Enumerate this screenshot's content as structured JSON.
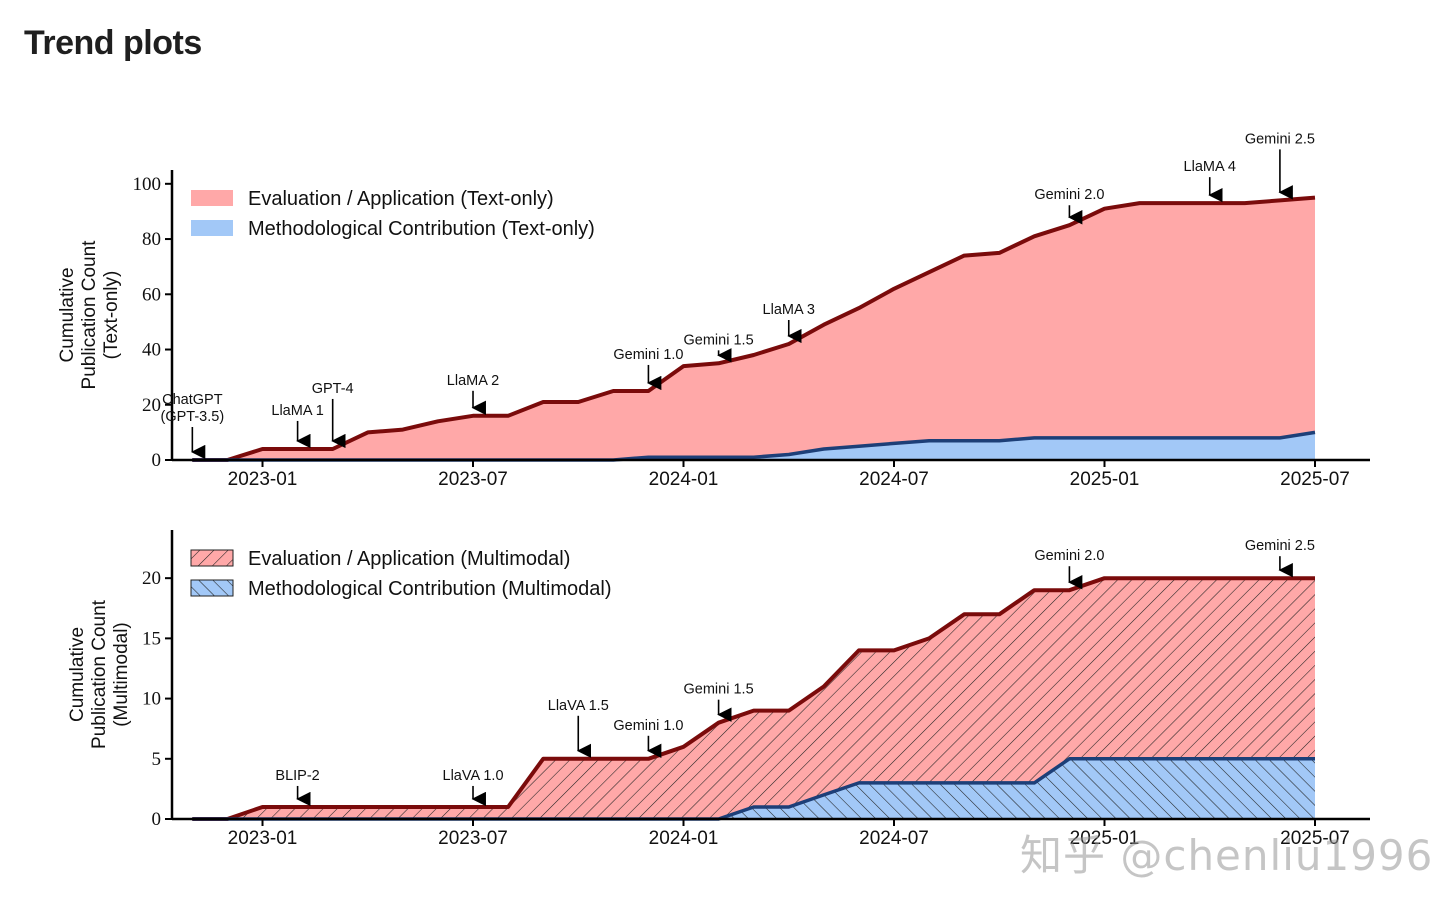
{
  "page": {
    "title": "Trend plots",
    "watermark": "知乎 @chenliu1996"
  },
  "colors": {
    "eval_fill": "#ffa8a8",
    "eval_line": "#7a0b0b",
    "method_fill": "#a2c8f7",
    "method_line": "#1d3f78"
  },
  "chart_data": [
    {
      "type": "area",
      "stacked": true,
      "ylabel": [
        "Cumulative",
        "Publication Count",
        "(Text-only)"
      ],
      "ylim": [
        0,
        105
      ],
      "yticks": [
        0,
        20,
        40,
        60,
        80,
        100
      ],
      "xlim": [
        "2022-10",
        "2025-07"
      ],
      "xticks": [
        "2023-01",
        "2023-07",
        "2024-01",
        "2024-07",
        "2025-01",
        "2025-07"
      ],
      "legend": "top-left",
      "hatched": false,
      "x": [
        "2022-11",
        "2022-12",
        "2023-01",
        "2023-02",
        "2023-03",
        "2023-04",
        "2023-05",
        "2023-06",
        "2023-07",
        "2023-08",
        "2023-09",
        "2023-10",
        "2023-11",
        "2023-12",
        "2024-01",
        "2024-02",
        "2024-03",
        "2024-04",
        "2024-05",
        "2024-06",
        "2024-07",
        "2024-08",
        "2024-09",
        "2024-10",
        "2024-11",
        "2024-12",
        "2025-01",
        "2025-02",
        "2025-03",
        "2025-04",
        "2025-05",
        "2025-06",
        "2025-07"
      ],
      "series": [
        {
          "name": "Methodological Contribution (Text-only)",
          "role": "method",
          "values": [
            0,
            0,
            0,
            0,
            0,
            0,
            0,
            0,
            0,
            0,
            0,
            0,
            0,
            1,
            1,
            1,
            1,
            2,
            4,
            5,
            6,
            7,
            7,
            7,
            8,
            8,
            8,
            8,
            8,
            8,
            8,
            8,
            10
          ]
        },
        {
          "name": "Evaluation / Application (Text-only)",
          "role": "eval",
          "values": [
            0,
            0,
            4,
            4,
            4,
            10,
            11,
            14,
            16,
            16,
            21,
            21,
            25,
            25,
            34,
            35,
            38,
            42,
            49,
            55,
            62,
            68,
            74,
            75,
            81,
            85,
            91,
            93,
            93,
            93,
            93,
            94,
            95
          ]
        }
      ],
      "annotations": [
        {
          "label": [
            "ChatGPT",
            "(GPT-3.5)"
          ],
          "x": "2022-11"
        },
        {
          "label": [
            "LlaMA 1"
          ],
          "x": "2023-02"
        },
        {
          "label": [
            "GPT-4"
          ],
          "x": "2023-03"
        },
        {
          "label": [
            "LlaMA 2"
          ],
          "x": "2023-07"
        },
        {
          "label": [
            "Gemini 1.0"
          ],
          "x": "2023-12"
        },
        {
          "label": [
            "Gemini 1.5"
          ],
          "x": "2024-02"
        },
        {
          "label": [
            "LlaMA 3"
          ],
          "x": "2024-04"
        },
        {
          "label": [
            "Gemini 2.0"
          ],
          "x": "2024-12"
        },
        {
          "label": [
            "LlaMA 4"
          ],
          "x": "2025-04"
        },
        {
          "label": [
            "Gemini 2.5"
          ],
          "x": "2025-06"
        }
      ]
    },
    {
      "type": "area",
      "stacked": true,
      "ylabel": [
        "Cumulative",
        "Publication Count",
        "(Multimodal)"
      ],
      "ylim": [
        0,
        24
      ],
      "yticks": [
        0,
        5,
        10,
        15,
        20
      ],
      "xlim": [
        "2022-10",
        "2025-07"
      ],
      "xticks": [
        "2023-01",
        "2023-07",
        "2024-01",
        "2024-07",
        "2025-01",
        "2025-07"
      ],
      "legend": "top-left",
      "hatched": true,
      "x": [
        "2022-11",
        "2022-12",
        "2023-01",
        "2023-02",
        "2023-03",
        "2023-04",
        "2023-05",
        "2023-06",
        "2023-07",
        "2023-08",
        "2023-09",
        "2023-10",
        "2023-11",
        "2023-12",
        "2024-01",
        "2024-02",
        "2024-03",
        "2024-04",
        "2024-05",
        "2024-06",
        "2024-07",
        "2024-08",
        "2024-09",
        "2024-10",
        "2024-11",
        "2024-12",
        "2025-01",
        "2025-02",
        "2025-03",
        "2025-04",
        "2025-05",
        "2025-06",
        "2025-07"
      ],
      "series": [
        {
          "name": "Methodological Contribution (Multimodal)",
          "role": "method",
          "values": [
            0,
            0,
            0,
            0,
            0,
            0,
            0,
            0,
            0,
            0,
            0,
            0,
            0,
            0,
            0,
            0,
            1,
            1,
            2,
            3,
            3,
            3,
            3,
            3,
            3,
            5,
            5,
            5,
            5,
            5,
            5,
            5,
            5
          ]
        },
        {
          "name": "Evaluation / Application (Multimodal)",
          "role": "eval",
          "values": [
            0,
            0,
            1,
            1,
            1,
            1,
            1,
            1,
            1,
            1,
            5,
            5,
            5,
            5,
            6,
            8,
            9,
            9,
            11,
            14,
            14,
            15,
            17,
            17,
            19,
            19,
            20,
            20,
            20,
            20,
            20,
            20,
            20
          ]
        }
      ],
      "annotations": [
        {
          "label": [
            "BLIP-2"
          ],
          "x": "2023-02"
        },
        {
          "label": [
            "LlaVA 1.0"
          ],
          "x": "2023-07"
        },
        {
          "label": [
            "LlaVA 1.5"
          ],
          "x": "2023-10"
        },
        {
          "label": [
            "Gemini 1.0"
          ],
          "x": "2023-12"
        },
        {
          "label": [
            "Gemini 1.5"
          ],
          "x": "2024-02"
        },
        {
          "label": [
            "Gemini 2.0"
          ],
          "x": "2024-12"
        },
        {
          "label": [
            "Gemini 2.5"
          ],
          "x": "2025-06"
        }
      ]
    }
  ]
}
